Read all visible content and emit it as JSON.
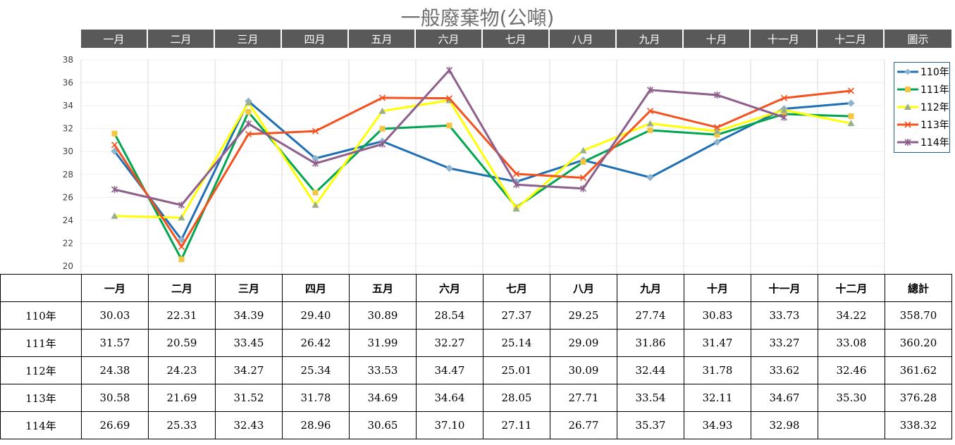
{
  "title": "一般廢棄物(公噸)",
  "months": [
    "一月",
    "二月",
    "三月",
    "四月",
    "五月",
    "六月",
    "七月",
    "八月",
    "九月",
    "十月",
    "十一月",
    "十二月"
  ],
  "legend_header": "圖示",
  "table": {
    "total_header": "總計",
    "rows": [
      {
        "label": "110年",
        "values": [
          "30.03",
          "22.31",
          "34.39",
          "29.40",
          "30.89",
          "28.54",
          "27.37",
          "29.25",
          "27.74",
          "30.83",
          "33.73",
          "34.22"
        ],
        "total": "358.70"
      },
      {
        "label": "111年",
        "values": [
          "31.57",
          "20.59",
          "33.45",
          "26.42",
          "31.99",
          "32.27",
          "25.14",
          "29.09",
          "31.86",
          "31.47",
          "33.27",
          "33.08"
        ],
        "total": "360.20"
      },
      {
        "label": "112年",
        "values": [
          "24.38",
          "24.23",
          "34.27",
          "25.34",
          "33.53",
          "34.47",
          "25.01",
          "30.09",
          "32.44",
          "31.78",
          "33.62",
          "32.46"
        ],
        "total": "361.62"
      },
      {
        "label": "113年",
        "values": [
          "30.58",
          "21.69",
          "31.52",
          "31.78",
          "34.69",
          "34.64",
          "28.05",
          "27.71",
          "33.54",
          "32.11",
          "34.67",
          "35.30"
        ],
        "total": "376.28"
      },
      {
        "label": "114年",
        "values": [
          "26.69",
          "25.33",
          "32.43",
          "28.96",
          "30.65",
          "37.10",
          "27.11",
          "26.77",
          "35.37",
          "34.93",
          "32.98",
          ""
        ],
        "total": "338.32"
      }
    ]
  },
  "chart_data": {
    "type": "line",
    "title": "一般廢棄物(公噸)",
    "categories": [
      "一月",
      "二月",
      "三月",
      "四月",
      "五月",
      "六月",
      "七月",
      "八月",
      "九月",
      "十月",
      "十一月",
      "十二月"
    ],
    "ylim": [
      20,
      38
    ],
    "yticks": [
      20,
      22,
      24,
      26,
      28,
      30,
      32,
      34,
      36,
      38
    ],
    "grid": "vertical",
    "legend_position": "right",
    "series": [
      {
        "name": "110年",
        "color": "#1f6fb4",
        "marker": "diamond",
        "values": [
          30.03,
          22.31,
          34.39,
          29.4,
          30.89,
          28.54,
          27.37,
          29.25,
          27.74,
          30.83,
          33.73,
          34.22
        ]
      },
      {
        "name": "111年",
        "color": "#00a650",
        "marker": "square",
        "values": [
          31.57,
          20.59,
          33.45,
          26.42,
          31.99,
          32.27,
          25.14,
          29.09,
          31.86,
          31.47,
          33.27,
          33.08
        ]
      },
      {
        "name": "112年",
        "color": "#ffff00",
        "marker": "triangle",
        "values": [
          24.38,
          24.23,
          34.27,
          25.34,
          33.53,
          34.47,
          25.01,
          30.09,
          32.44,
          31.78,
          33.62,
          32.46
        ]
      },
      {
        "name": "113年",
        "color": "#f4511e",
        "marker": "x",
        "values": [
          30.58,
          21.69,
          31.52,
          31.78,
          34.69,
          34.64,
          28.05,
          27.71,
          33.54,
          32.11,
          34.67,
          35.3
        ]
      },
      {
        "name": "114年",
        "color": "#8e5f8c",
        "marker": "star",
        "values": [
          26.69,
          25.33,
          32.43,
          28.96,
          30.65,
          37.1,
          27.11,
          26.77,
          35.37,
          34.93,
          32.98,
          null
        ]
      }
    ]
  }
}
